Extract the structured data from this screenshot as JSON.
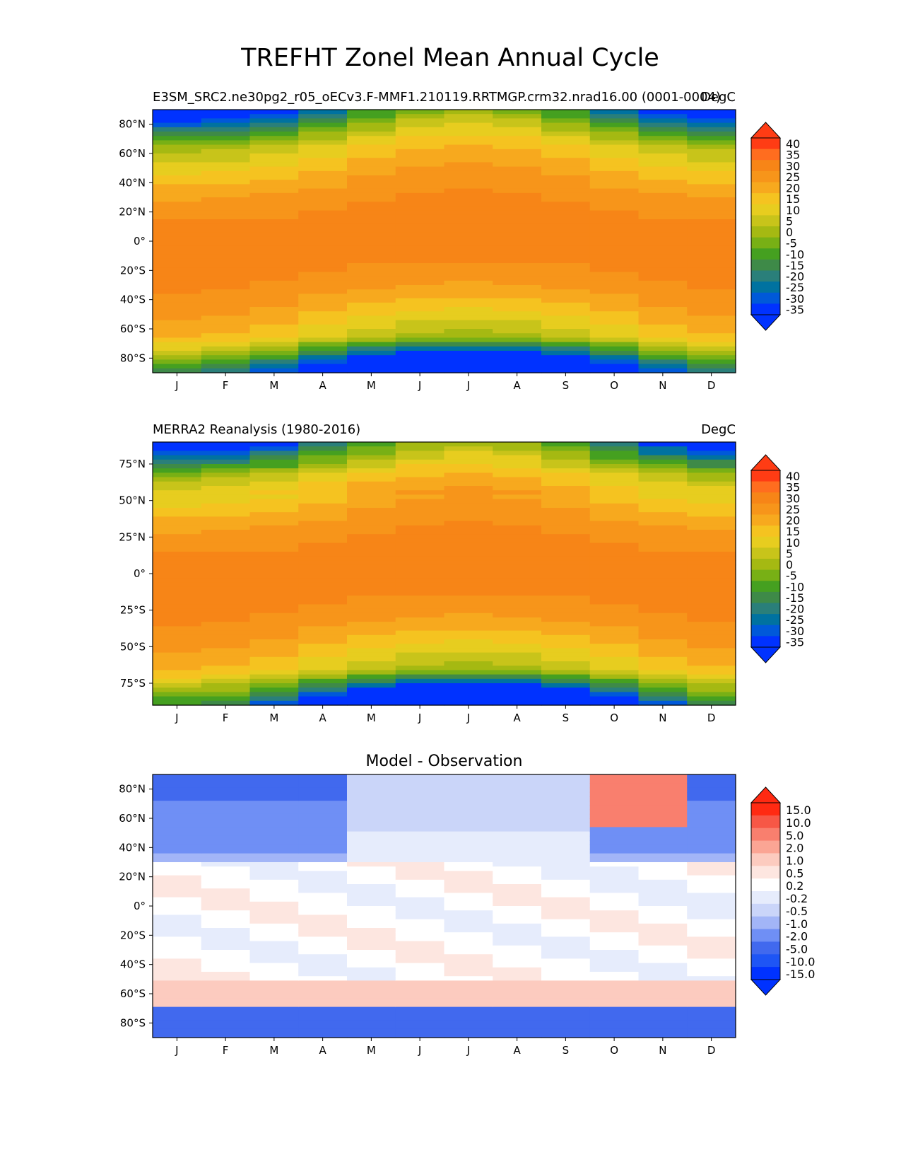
{
  "title": "TREFHT Zonel Mean Annual Cycle",
  "chart_data": [
    {
      "type": "heatmap",
      "title_left": "E3SM_SRC2.ne30pg2_r05_oECv3.F-MMF1.210119.RRTMGP.crm32.nrad16.00 (0001-0004)",
      "title_right": "DegC",
      "x_categories": [
        "J",
        "F",
        "M",
        "A",
        "M",
        "J",
        "J",
        "A",
        "S",
        "O",
        "N",
        "D"
      ],
      "ylim": [
        -90,
        90
      ],
      "y_ticks": [
        {
          "value": 80,
          "label": "80°N"
        },
        {
          "value": 60,
          "label": "60°N"
        },
        {
          "value": 40,
          "label": "40°N"
        },
        {
          "value": 20,
          "label": "20°N"
        },
        {
          "value": 0,
          "label": "0°"
        },
        {
          "value": -20,
          "label": "20°S"
        },
        {
          "value": -40,
          "label": "40°S"
        },
        {
          "value": -60,
          "label": "60°S"
        },
        {
          "value": -80,
          "label": "80°S"
        }
      ],
      "colorbar_levels": [
        "40",
        "35",
        "30",
        "25",
        "20",
        "15",
        "10",
        "5",
        "0",
        "-5",
        "-10",
        "-15",
        "-20",
        "-25",
        "-30",
        "-35"
      ],
      "field": "model"
    },
    {
      "type": "heatmap",
      "title_left": "MERRA2 Reanalysis (1980-2016)",
      "title_right": "DegC",
      "x_categories": [
        "J",
        "F",
        "M",
        "A",
        "M",
        "J",
        "J",
        "A",
        "S",
        "O",
        "N",
        "D"
      ],
      "ylim": [
        -90,
        90
      ],
      "y_ticks": [
        {
          "value": 75,
          "label": "75°N"
        },
        {
          "value": 50,
          "label": "50°N"
        },
        {
          "value": 25,
          "label": "25°N"
        },
        {
          "value": 0,
          "label": "0°"
        },
        {
          "value": -25,
          "label": "25°S"
        },
        {
          "value": -50,
          "label": "50°S"
        },
        {
          "value": -75,
          "label": "75°S"
        }
      ],
      "colorbar_levels": [
        "40",
        "35",
        "30",
        "25",
        "20",
        "15",
        "10",
        "5",
        "0",
        "-5",
        "-10",
        "-15",
        "-20",
        "-25",
        "-30",
        "-35"
      ],
      "field": "obs"
    },
    {
      "type": "heatmap",
      "title_center": "Model - Observation",
      "x_categories": [
        "J",
        "F",
        "M",
        "A",
        "M",
        "J",
        "J",
        "A",
        "S",
        "O",
        "N",
        "D"
      ],
      "ylim": [
        -90,
        90
      ],
      "y_ticks": [
        {
          "value": 80,
          "label": "80°N"
        },
        {
          "value": 60,
          "label": "60°N"
        },
        {
          "value": 40,
          "label": "40°N"
        },
        {
          "value": 20,
          "label": "20°N"
        },
        {
          "value": 0,
          "label": "0°"
        },
        {
          "value": -20,
          "label": "20°S"
        },
        {
          "value": -40,
          "label": "40°S"
        },
        {
          "value": -60,
          "label": "60°S"
        },
        {
          "value": -80,
          "label": "80°S"
        }
      ],
      "colorbar_levels": [
        "15.0",
        "10.0",
        "5.0",
        "2.0",
        "1.0",
        "0.5",
        "0.2",
        "-0.2",
        "-0.5",
        "-1.0",
        "-2.0",
        "-5.0",
        "-10.0",
        "-15.0"
      ],
      "field": "diff"
    }
  ],
  "colors": {
    "temp_scale": [
      "#0032ff",
      "#0059d9",
      "#0072a0",
      "#2a7f7a",
      "#3e8a48",
      "#45a020",
      "#78b015",
      "#a5b912",
      "#c8c41a",
      "#e7cd1f",
      "#f5c320",
      "#f7a91e",
      "#f7951a",
      "#f78517",
      "#ff6d1f",
      "#ff3c14"
    ],
    "diff_scale": [
      "#0032ff",
      "#1e55f5",
      "#4169ee",
      "#6f8ff5",
      "#a2b5f7",
      "#cad5f9",
      "#e6ecfc",
      "#ffffff",
      "#fde6e0",
      "#fccbbf",
      "#fba594",
      "#f97f6e",
      "#f75746",
      "#ff2a12"
    ]
  }
}
